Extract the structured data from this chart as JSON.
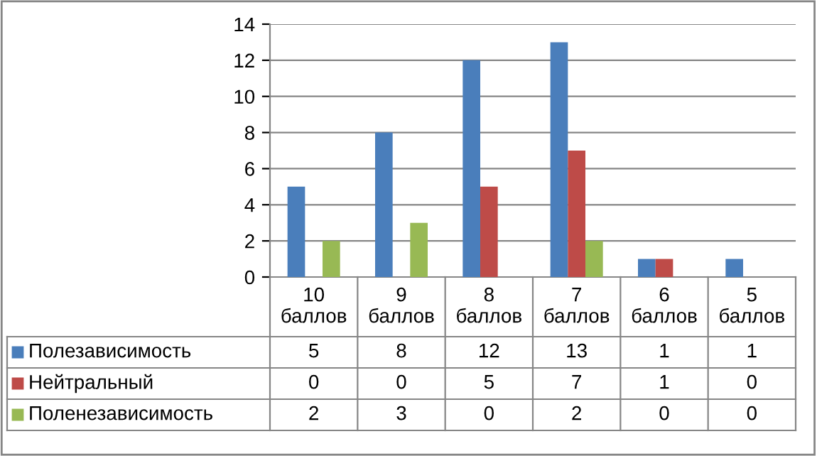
{
  "chart_data": {
    "type": "bar",
    "categories": [
      "10 баллов",
      "9 баллов",
      "8 баллов",
      "7 баллов",
      "6 баллов",
      "5 баллов"
    ],
    "series": [
      {
        "name": "Полезависимость",
        "color": "#4a7ebb",
        "values": [
          5,
          8,
          12,
          13,
          1,
          1
        ]
      },
      {
        "name": "Нейтральный",
        "color": "#be4b48",
        "values": [
          0,
          0,
          5,
          7,
          1,
          0
        ]
      },
      {
        "name": "Поленезависимость",
        "color": "#98b954",
        "values": [
          2,
          3,
          0,
          2,
          0,
          0
        ]
      }
    ],
    "ylim": [
      0,
      14
    ],
    "yticks": [
      0,
      2,
      4,
      6,
      8,
      10,
      12,
      14
    ],
    "grid": "y",
    "legend": "bottom",
    "data_labels": true
  }
}
